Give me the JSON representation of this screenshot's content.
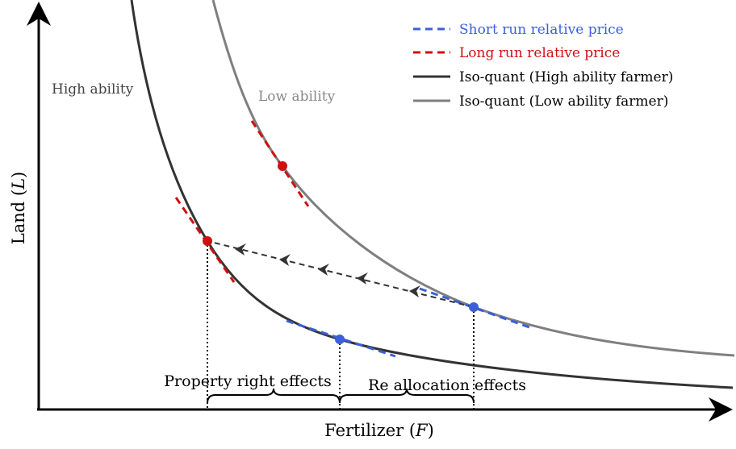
{
  "diagram": {
    "axes": {
      "x_label_text": "Fertilizer (",
      "x_label_var": "F",
      "x_label_close": ")",
      "y_label_text": "Land (",
      "y_label_var": "L",
      "y_label_close": ")"
    },
    "curve_labels": {
      "high": "High ability",
      "low": "Low ability"
    },
    "legend": [
      {
        "label": "Short run relative price",
        "style": "dashed",
        "color": "#3b5fd9"
      },
      {
        "label": "Long run relative price",
        "style": "dashed",
        "color": "#d01010"
      },
      {
        "label": "Iso-quant (High ability farmer)",
        "style": "solid",
        "color": "#333333"
      },
      {
        "label": "Iso-quant (Low ability farmer)",
        "style": "solid",
        "color": "#7f7f7f"
      }
    ],
    "braces": {
      "property_right": "Property right effects",
      "reallocation": "Re allocation effects"
    },
    "colors": {
      "short_run": "#3b5fd9",
      "long_run": "#d01010",
      "high_curve": "#333333",
      "low_curve": "#7f7f7f",
      "arrow": "#333333"
    }
  }
}
